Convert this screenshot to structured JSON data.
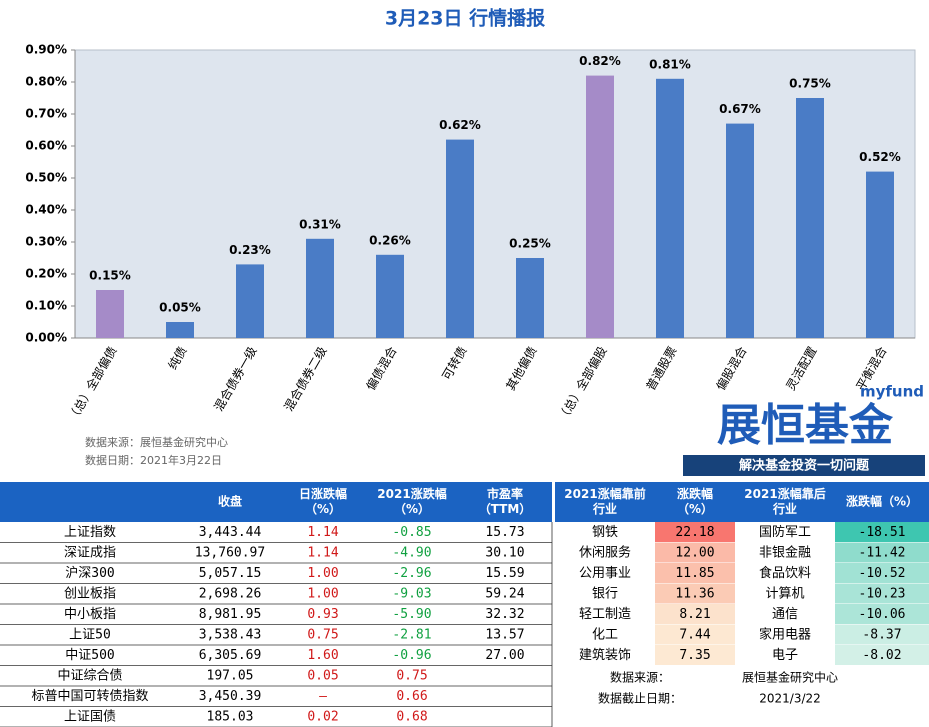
{
  "chart_data": {
    "type": "bar",
    "title": "3月23日  行情播报",
    "categories": [
      "（总）全部偏债",
      "纯债",
      "混合债券一级",
      "混合债券二级",
      "偏债混合",
      "可转债",
      "其他偏债",
      "（总）全部偏股",
      "普通股票",
      "偏股混合",
      "灵活配置",
      "平衡混合"
    ],
    "values": [
      0.15,
      0.05,
      0.23,
      0.31,
      0.26,
      0.62,
      0.25,
      0.82,
      0.81,
      0.67,
      0.75,
      0.52
    ],
    "value_labels": [
      "0.15%",
      "0.05%",
      "0.23%",
      "0.31%",
      "0.26%",
      "0.62%",
      "0.25%",
      "0.82%",
      "0.81%",
      "0.67%",
      "0.75%",
      "0.52%"
    ],
    "colors": [
      "#a58bc8",
      "#4a7cc6",
      "#4a7cc6",
      "#4a7cc6",
      "#4a7cc6",
      "#4a7cc6",
      "#4a7cc6",
      "#a58bc8",
      "#4a7cc6",
      "#4a7cc6",
      "#4a7cc6",
      "#4a7cc6"
    ],
    "ylim": [
      0,
      0.9
    ],
    "yticks": [
      {
        "value": 0,
        "label": "0.00%"
      },
      {
        "value": 0.1,
        "label": "0.10%"
      },
      {
        "value": 0.2,
        "label": "0.20%"
      },
      {
        "value": 0.3,
        "label": "0.30%"
      },
      {
        "value": 0.4,
        "label": "0.40%"
      },
      {
        "value": 0.5,
        "label": "0.50%"
      },
      {
        "value": 0.6,
        "label": "0.60%"
      },
      {
        "value": 0.7,
        "label": "0.70%"
      },
      {
        "value": 0.8,
        "label": "0.80%"
      },
      {
        "value": 0.9,
        "label": "0.90%"
      }
    ],
    "grid": false
  },
  "notes": [
    "数据来源：展恒基金研究中心",
    "数据日期：2021年3月22日"
  ],
  "logo": {
    "brand": "myfund",
    "name": "展恒基金",
    "slogan": "解决基金投资一切问题"
  },
  "market_table": {
    "header": [
      [
        "收盘"
      ],
      [
        "日涨跌幅",
        "（%）"
      ],
      [
        "2021涨跌幅",
        "（%）"
      ],
      [
        "市盈率",
        "（TTM）"
      ]
    ],
    "rows": [
      [
        "上证指数",
        "3,443.44",
        "1.14",
        "-0.85",
        "15.73"
      ],
      [
        "深证成指",
        "13,760.97",
        "1.14",
        "-4.90",
        "30.10"
      ],
      [
        "沪深300",
        "5,057.15",
        "1.00",
        "-2.96",
        "15.59"
      ],
      [
        "创业板指",
        "2,698.26",
        "1.00",
        "-9.03",
        "59.24"
      ],
      [
        "中小板指",
        "8,981.95",
        "0.93",
        "-5.90",
        "32.32"
      ],
      [
        "上证50",
        "3,538.43",
        "0.75",
        "-2.81",
        "13.57"
      ],
      [
        "中证500",
        "6,305.69",
        "1.60",
        "-0.96",
        "27.00"
      ],
      [
        "中证综合债",
        "197.05",
        "0.05",
        "0.75"
      ],
      [
        "标普中国可转债指数",
        "3,450.39",
        "–",
        "0.66"
      ],
      [
        "上证国债",
        "185.03",
        "0.02",
        "0.68"
      ]
    ]
  },
  "sector_table": {
    "header": [
      [
        "2021涨幅靠前",
        "行业"
      ],
      [
        "涨跌幅",
        "（%）"
      ],
      [
        "2021涨幅靠后",
        "行业"
      ],
      [
        "涨跌幅（%）"
      ]
    ],
    "rows": [
      [
        "钢铁",
        "22.18",
        "国防军工",
        "-18.51"
      ],
      [
        "休闲服务",
        "12.00",
        "非银金融",
        "-11.42"
      ],
      [
        "公用事业",
        "11.85",
        "食品饮料",
        "-10.52"
      ],
      [
        "银行",
        "11.36",
        "计算机",
        "-10.23"
      ],
      [
        "轻工制造",
        "8.21",
        "通信",
        "-10.06"
      ],
      [
        "化工",
        "7.44",
        "家用电器",
        "-8.37"
      ],
      [
        "建筑装饰",
        "7.35",
        "电子",
        "-8.02"
      ]
    ],
    "top_colors": [
      "#f8766f",
      "#fbbaa8",
      "#fbc0ac",
      "#fbcbb5",
      "#fce2cc",
      "#fde8d2",
      "#fde9d3"
    ],
    "bottom_colors": [
      "#3ec6b0",
      "#8fdccc",
      "#a1e2d4",
      "#a9e4d7",
      "#ace5d8",
      "#cbeee4",
      "#d3f0e7"
    ],
    "notes": [
      [
        "数据来源：",
        "展恒基金研究中心"
      ],
      [
        "数据截止日期：",
        "2021/3/22"
      ]
    ]
  }
}
